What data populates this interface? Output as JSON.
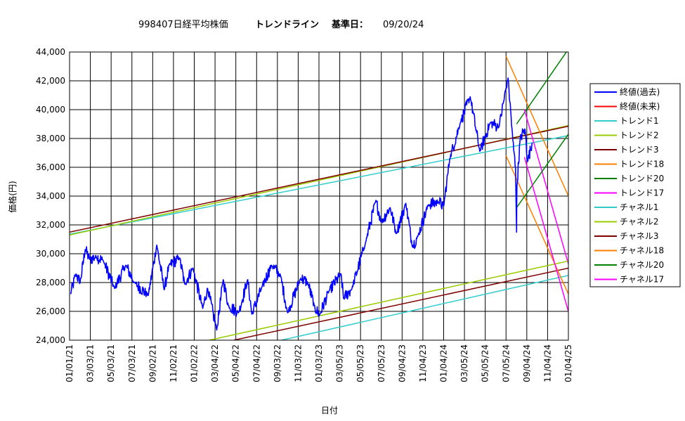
{
  "chart_data": {
    "type": "line",
    "title": {
      "code": "998407日経平均株価",
      "label": "トレンドライン",
      "base_label": "基準日：",
      "base_date": "09/20/24"
    },
    "xlabel": "日付",
    "ylabel": "価格(円)",
    "ylim": [
      24000,
      44000
    ],
    "yticks": [
      "24,000",
      "26,000",
      "28,000",
      "30,000",
      "32,000",
      "34,000",
      "36,000",
      "38,000",
      "40,000",
      "42,000",
      "44,000"
    ],
    "xlim": [
      "2021-01-01",
      "2025-01-04"
    ],
    "xticks": [
      "01/01/21",
      "03/03/21",
      "05/03/21",
      "07/03/21",
      "09/02/21",
      "11/02/21",
      "01/02/22",
      "03/04/22",
      "05/04/22",
      "07/04/22",
      "09/03/22",
      "11/03/22",
      "01/03/23",
      "03/05/23",
      "05/05/23",
      "07/05/23",
      "09/04/23",
      "11/04/23",
      "01/04/24",
      "03/05/24",
      "05/05/24",
      "07/05/24",
      "09/04/24",
      "11/04/24",
      "01/04/25"
    ],
    "grid": true,
    "legend_position": "right",
    "price_path": [
      [
        "2021-01-04",
        27200
      ],
      [
        "2021-01-20",
        28600
      ],
      [
        "2021-02-01",
        28000
      ],
      [
        "2021-02-16",
        30300
      ],
      [
        "2021-03-01",
        29600
      ],
      [
        "2021-03-20",
        29800
      ],
      [
        "2021-04-10",
        29500
      ],
      [
        "2021-05-13",
        27600
      ],
      [
        "2021-06-15",
        29200
      ],
      [
        "2021-07-10",
        28000
      ],
      [
        "2021-08-20",
        27100
      ],
      [
        "2021-09-14",
        30600
      ],
      [
        "2021-10-06",
        27500
      ],
      [
        "2021-10-20",
        29200
      ],
      [
        "2021-11-20",
        29700
      ],
      [
        "2021-12-05",
        27900
      ],
      [
        "2021-12-29",
        29000
      ],
      [
        "2022-01-27",
        26200
      ],
      [
        "2022-02-10",
        27600
      ],
      [
        "2022-03-09",
        24700
      ],
      [
        "2022-03-28",
        28200
      ],
      [
        "2022-04-12",
        26400
      ],
      [
        "2022-05-12",
        25900
      ],
      [
        "2022-06-08",
        28200
      ],
      [
        "2022-06-20",
        25800
      ],
      [
        "2022-07-20",
        27700
      ],
      [
        "2022-08-17",
        29200
      ],
      [
        "2022-09-12",
        28500
      ],
      [
        "2022-10-03",
        25900
      ],
      [
        "2022-11-10",
        28300
      ],
      [
        "2022-12-01",
        28000
      ],
      [
        "2022-12-20",
        26400
      ],
      [
        "2023-01-04",
        25700
      ],
      [
        "2023-02-01",
        27400
      ],
      [
        "2023-03-09",
        28600
      ],
      [
        "2023-03-16",
        26900
      ],
      [
        "2023-04-10",
        27600
      ],
      [
        "2023-05-20",
        30800
      ],
      [
        "2023-06-19",
        33700
      ],
      [
        "2023-07-05",
        32200
      ],
      [
        "2023-07-31",
        33200
      ],
      [
        "2023-08-18",
        31400
      ],
      [
        "2023-09-15",
        33500
      ],
      [
        "2023-10-04",
        30500
      ],
      [
        "2023-10-20",
        31200
      ],
      [
        "2023-11-20",
        33400
      ],
      [
        "2023-12-20",
        33600
      ],
      [
        "2024-01-04",
        33300
      ],
      [
        "2024-01-22",
        36600
      ],
      [
        "2024-02-22",
        39100
      ],
      [
        "2024-03-22",
        40900
      ],
      [
        "2024-04-19",
        37100
      ],
      [
        "2024-05-20",
        39100
      ],
      [
        "2024-06-14",
        38800
      ],
      [
        "2024-07-11",
        42200
      ],
      [
        "2024-07-25",
        37900
      ],
      [
        "2024-08-02",
        35900
      ],
      [
        "2024-08-05",
        31500
      ],
      [
        "2024-08-06",
        34700
      ],
      [
        "2024-08-16",
        38100
      ],
      [
        "2024-08-30",
        38600
      ],
      [
        "2024-09-06",
        36400
      ],
      [
        "2024-09-20",
        37700
      ]
    ],
    "series": [
      {
        "name": "終値(過去)",
        "color": "#0000ff",
        "width": 2,
        "kind": "price"
      },
      {
        "name": "終値(未来)",
        "color": "#ff0000",
        "width": 1.5,
        "kind": "none"
      },
      {
        "name": "トレンド1",
        "color": "#33cccc",
        "width": 1.5,
        "points": [
          [
            "2021-01-01",
            31350
          ],
          [
            "2025-01-04",
            38200
          ]
        ]
      },
      {
        "name": "トレンド2",
        "color": "#99cc00",
        "width": 1.5,
        "points": [
          [
            "2021-01-01",
            31300
          ],
          [
            "2025-01-04",
            38900
          ]
        ]
      },
      {
        "name": "トレンド3",
        "color": "#800000",
        "width": 1.5,
        "points": [
          [
            "2021-01-01",
            31500
          ],
          [
            "2025-01-04",
            38850
          ]
        ]
      },
      {
        "name": "トレンド18",
        "color": "#ff8000",
        "width": 1.5,
        "points": [
          [
            "2024-07-05",
            43700
          ],
          [
            "2025-01-04",
            34000
          ]
        ]
      },
      {
        "name": "トレンド20",
        "color": "#008000",
        "width": 1.5,
        "points": [
          [
            "2024-08-05",
            39000
          ],
          [
            "2025-01-04",
            44200
          ]
        ]
      },
      {
        "name": "トレンド17",
        "color": "#ff00ff",
        "width": 1.5,
        "points": [
          [
            "2024-08-28",
            40000
          ],
          [
            "2025-01-04",
            29300
          ]
        ]
      },
      {
        "name": "チャネル1",
        "color": "#33cccc",
        "width": 1.5,
        "points": [
          [
            "2022-09-15",
            24000
          ],
          [
            "2025-01-04",
            28500
          ]
        ]
      },
      {
        "name": "チャネル2",
        "color": "#99cc00",
        "width": 1.5,
        "points": [
          [
            "2022-02-15",
            24000
          ],
          [
            "2025-01-04",
            29500
          ]
        ]
      },
      {
        "name": "チャネル3",
        "color": "#800000",
        "width": 1.5,
        "points": [
          [
            "2022-04-28",
            24000
          ],
          [
            "2025-01-04",
            29000
          ]
        ]
      },
      {
        "name": "チャネル18",
        "color": "#ff8000",
        "width": 1.5,
        "points": [
          [
            "2024-07-05",
            36800
          ],
          [
            "2025-01-04",
            27200
          ]
        ]
      },
      {
        "name": "チャネル20",
        "color": "#008000",
        "width": 1.5,
        "points": [
          [
            "2024-08-05",
            33200
          ],
          [
            "2025-01-04",
            38300
          ]
        ]
      },
      {
        "name": "チャネル17",
        "color": "#ff00ff",
        "width": 1.5,
        "points": [
          [
            "2024-08-28",
            36700
          ],
          [
            "2025-01-04",
            26000
          ]
        ]
      }
    ]
  }
}
